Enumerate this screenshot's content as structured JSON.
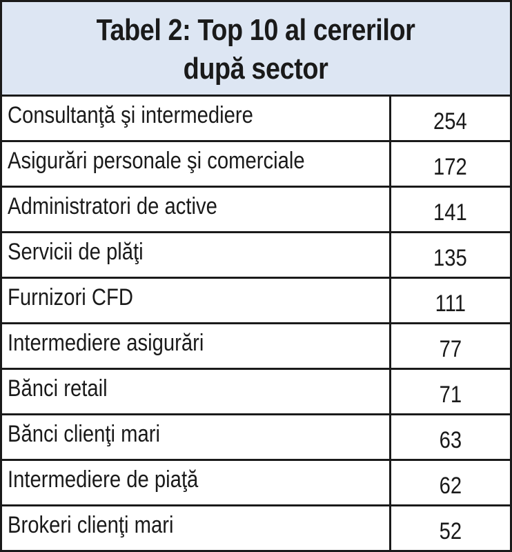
{
  "table": {
    "title": "Tabel 2: Top 10 al cererilor\ndupă sector",
    "rows": [
      {
        "label": "Consultanţă şi intermediere",
        "value": "254"
      },
      {
        "label": "Asigurări personale şi comerciale",
        "value": "172"
      },
      {
        "label": "Administratori de active",
        "value": "141"
      },
      {
        "label": "Servicii de plăţi",
        "value": "135"
      },
      {
        "label": "Furnizori CFD",
        "value": "111"
      },
      {
        "label": "Intermediere asigurări",
        "value": "77"
      },
      {
        "label": "Bănci retail",
        "value": "71"
      },
      {
        "label": "Bănci clienţi mari",
        "value": "63"
      },
      {
        "label": "Intermediere de piaţă",
        "value": "62"
      },
      {
        "label": "Brokeri clienţi mari",
        "value": "52"
      }
    ]
  },
  "colors": {
    "header_background": "#dde6f3",
    "border": "#1a1a1a",
    "text": "#1a1a1a"
  }
}
